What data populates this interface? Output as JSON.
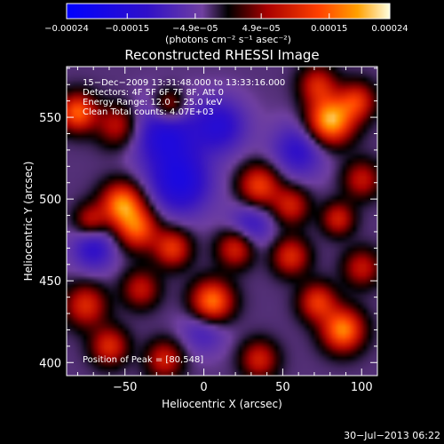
{
  "chart_data": {
    "type": "heatmap",
    "title": "Reconstructed RHESSI Image",
    "xlabel": "Heliocentric X (arcsec)",
    "ylabel": "Heliocentric Y (arcsec)",
    "xlim": [
      -87,
      110
    ],
    "ylim": [
      392,
      581
    ],
    "xticks": [
      -50,
      0,
      50,
      100
    ],
    "xtick_labels": [
      "−50",
      "0",
      "50",
      "100"
    ],
    "yticks": [
      400,
      450,
      500,
      550
    ],
    "ytick_labels": [
      "400",
      "450",
      "500",
      "550"
    ],
    "colorbar": {
      "range": [
        -0.00024,
        0.00024
      ],
      "ticks": [
        -0.00024,
        -0.00015,
        -4.9e-05,
        4.9e-05,
        0.00015,
        0.00024
      ],
      "tick_labels": [
        "−0.00024",
        "−0.00015",
        "−4.9e−05",
        "4.9e−05",
        "0.00015",
        "0.00024"
      ],
      "label": "(photons cm⁻² s⁻¹ asec⁻²)"
    },
    "annotations": [
      "15−Dec−2009 13:31:48.000 to 13:33:16.000",
      "Detectors: 4F 5F 6F 7F 8F, Att 0",
      "Energy Range: 12.0 − 25.0 keV",
      "Clean    Total counts: 4.07E+03"
    ],
    "peak_label": "Position of Peak = [80,548]",
    "grid": false,
    "sources": [
      {
        "x": 80,
        "y": 548,
        "amp": 1.0,
        "r": 10
      },
      {
        "x": 97,
        "y": 560,
        "amp": 0.55,
        "r": 8
      },
      {
        "x": 72,
        "y": 570,
        "amp": 0.5,
        "r": 8
      },
      {
        "x": -80,
        "y": 553,
        "amp": 0.75,
        "r": 8
      },
      {
        "x": -55,
        "y": 545,
        "amp": 0.45,
        "r": 9
      },
      {
        "x": -22,
        "y": 557,
        "amp": 0.5,
        "r": 7
      },
      {
        "x": 100,
        "y": 512,
        "amp": 0.45,
        "r": 8
      },
      {
        "x": 35,
        "y": 508,
        "amp": 0.65,
        "r": 9
      },
      {
        "x": 55,
        "y": 496,
        "amp": 0.5,
        "r": 8
      },
      {
        "x": 85,
        "y": 488,
        "amp": 0.5,
        "r": 7
      },
      {
        "x": -52,
        "y": 497,
        "amp": 0.85,
        "r": 9
      },
      {
        "x": -42,
        "y": 482,
        "amp": 0.7,
        "r": 9
      },
      {
        "x": -72,
        "y": 487,
        "amp": 0.45,
        "r": 7
      },
      {
        "x": -20,
        "y": 470,
        "amp": 0.6,
        "r": 8
      },
      {
        "x": 20,
        "y": 470,
        "amp": 0.55,
        "r": 8
      },
      {
        "x": 55,
        "y": 465,
        "amp": 0.55,
        "r": 8
      },
      {
        "x": 100,
        "y": 458,
        "amp": 0.45,
        "r": 8
      },
      {
        "x": 5,
        "y": 437,
        "amp": 0.85,
        "r": 9
      },
      {
        "x": 72,
        "y": 437,
        "amp": 0.6,
        "r": 8
      },
      {
        "x": 88,
        "y": 420,
        "amp": 0.85,
        "r": 9
      },
      {
        "x": -75,
        "y": 435,
        "amp": 0.55,
        "r": 9
      },
      {
        "x": -40,
        "y": 445,
        "amp": 0.45,
        "r": 8
      },
      {
        "x": -60,
        "y": 410,
        "amp": 0.55,
        "r": 8
      },
      {
        "x": -25,
        "y": 402,
        "amp": 0.5,
        "r": 8
      },
      {
        "x": 35,
        "y": 402,
        "amp": 0.5,
        "r": 8
      },
      {
        "x": -15,
        "y": 510,
        "amp": -0.55,
        "r": 14
      },
      {
        "x": -25,
        "y": 540,
        "amp": -0.5,
        "r": 14
      },
      {
        "x": 10,
        "y": 545,
        "amp": -0.45,
        "r": 12
      },
      {
        "x": 60,
        "y": 530,
        "amp": -0.4,
        "r": 12
      },
      {
        "x": -70,
        "y": 470,
        "amp": -0.4,
        "r": 10
      },
      {
        "x": 30,
        "y": 485,
        "amp": -0.35,
        "r": 10
      },
      {
        "x": 0,
        "y": 420,
        "amp": -0.3,
        "r": 10
      }
    ]
  },
  "footer": {
    "date": "30−Jul−2013 06:22"
  }
}
